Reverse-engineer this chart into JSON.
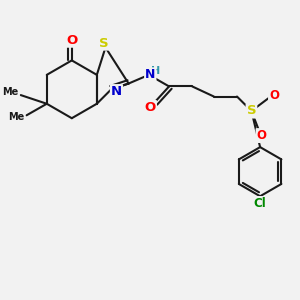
{
  "bg_color": "#f2f2f2",
  "bond_color": "#1a1a1a",
  "bond_width": 1.5,
  "atom_colors": {
    "O": "#ff0000",
    "N": "#0000cc",
    "S": "#cccc00",
    "Cl": "#008800",
    "C": "#1a1a1a",
    "H": "#3399aa"
  },
  "font_size": 8.5
}
